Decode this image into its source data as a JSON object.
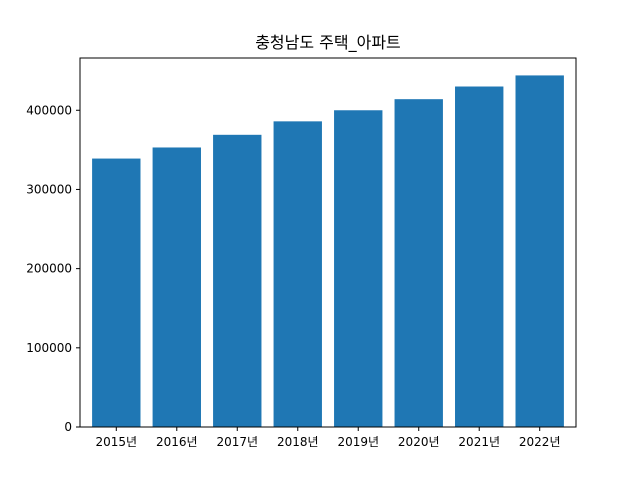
{
  "chart_data": {
    "type": "bar",
    "title": "충청남도 주택_아파트",
    "xlabel": "",
    "ylabel": "",
    "categories": [
      "2015년",
      "2016년",
      "2017년",
      "2018년",
      "2019년",
      "2020년",
      "2021년",
      "2022년"
    ],
    "values": [
      339000,
      353000,
      369000,
      386000,
      400000,
      414000,
      430000,
      444000
    ],
    "ylim": [
      0,
      466000
    ],
    "yticks": [
      0,
      100000,
      200000,
      300000,
      400000
    ],
    "ytick_labels": [
      "0",
      "100000",
      "200000",
      "300000",
      "400000"
    ],
    "grid": false,
    "legend": "none",
    "colors": {
      "bar": "#1f77b4",
      "axis": "#000000",
      "background": "#ffffff"
    }
  }
}
